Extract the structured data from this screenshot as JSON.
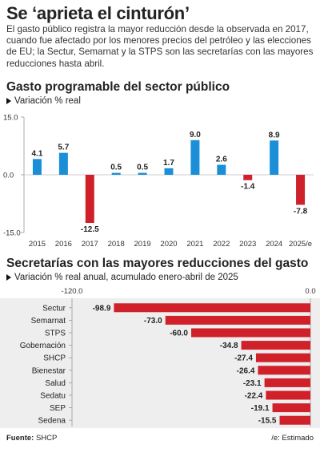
{
  "header": {
    "title": "Se ‘aprieta el cinturón’",
    "lead": "El gasto público registra la mayor reducción desde la observada en 2017, cuando fue afectado por los menores precios del petróleo y las elecciones de EU; la Sectur, Semarnat y la STPS son las secretarías con las mayores reducciones hasta abril."
  },
  "source": {
    "label": "Fuente:",
    "value": "SHCP"
  },
  "note": "/e: Estimado",
  "colors": {
    "positive": "#1a8fd8",
    "negative": "#d0202a",
    "band": "#eeeeee"
  },
  "chart_data": [
    {
      "type": "bar",
      "title": "Gasto programable del sector público",
      "subtitle": "Variación % real",
      "categories": [
        "2015",
        "2016",
        "2017",
        "2018",
        "2019",
        "2020",
        "2021",
        "2022",
        "2023",
        "2024",
        "2025/e"
      ],
      "values": [
        4.1,
        5.7,
        -12.5,
        0.5,
        0.5,
        1.7,
        9.0,
        2.6,
        -1.4,
        8.9,
        -7.8
      ],
      "value_labels": [
        "4.1",
        "5.7",
        "-12.5",
        "0.5",
        "0.5",
        "1.7",
        "9.0",
        "2.6",
        "-1.4",
        "8.9",
        "-7.8"
      ],
      "ylim": [
        -15,
        15
      ],
      "yticks": [
        "15.0",
        "0.0",
        "-15.0"
      ],
      "grid": false
    },
    {
      "type": "bar",
      "orientation": "horizontal",
      "title": "Secretarías con las mayores reducciones del gasto",
      "subtitle": "Variación % real anual, acumulado enero-abril de 2025",
      "categories": [
        "Sectur",
        "Semarnat",
        "STPS",
        "Gobernación",
        "SHCP",
        "Bienestar",
        "Salud",
        "Sedatu",
        "SEP",
        "Sedena"
      ],
      "values": [
        -98.9,
        -73.0,
        -60.0,
        -34.8,
        -27.4,
        -26.4,
        -23.1,
        -22.4,
        -19.1,
        -15.5
      ],
      "value_labels": [
        "-98.9",
        "-73.0",
        "-60.0",
        "-34.8",
        "-27.4",
        "-26.4",
        "-23.1",
        "-22.4",
        "-19.1",
        "-15.5"
      ],
      "xlim": [
        -120,
        0
      ],
      "xticks": [
        "-120.0",
        "0.0"
      ]
    }
  ]
}
